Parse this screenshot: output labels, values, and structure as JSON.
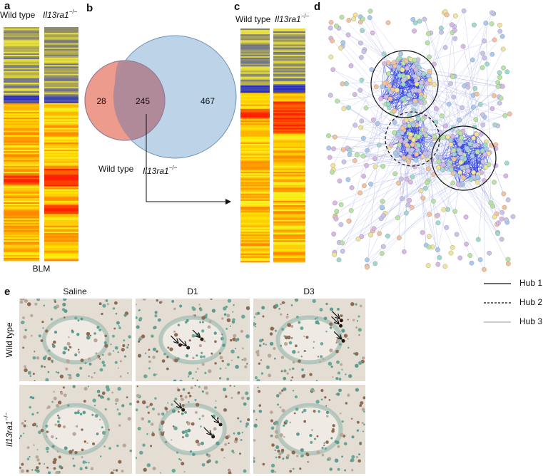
{
  "panels": {
    "a": {
      "label": "a",
      "columns": [
        "Wild type",
        {
          "gene": "Il13ra1",
          "superscript": "−/−"
        }
      ],
      "footer": "BLM"
    },
    "b": {
      "label": "b",
      "venn": {
        "left_only": 28,
        "overlap": 245,
        "right_only": 467,
        "left_label": "Wild type",
        "right_label": {
          "gene": "Il13ra1",
          "superscript": "−/−"
        }
      }
    },
    "c": {
      "label": "c",
      "columns": [
        "Wild type",
        {
          "gene": "Il13ra1",
          "superscript": "−/−"
        }
      ]
    },
    "d": {
      "label": "d",
      "legend": [
        "Hub 1",
        "Hub 2",
        "Hub 3"
      ]
    },
    "e": {
      "label": "e",
      "columns": [
        "Saline",
        "D1",
        "D3"
      ],
      "rows": [
        "Wild type",
        {
          "gene": "Il13ra1",
          "superscript": "−/−"
        }
      ]
    }
  }
}
